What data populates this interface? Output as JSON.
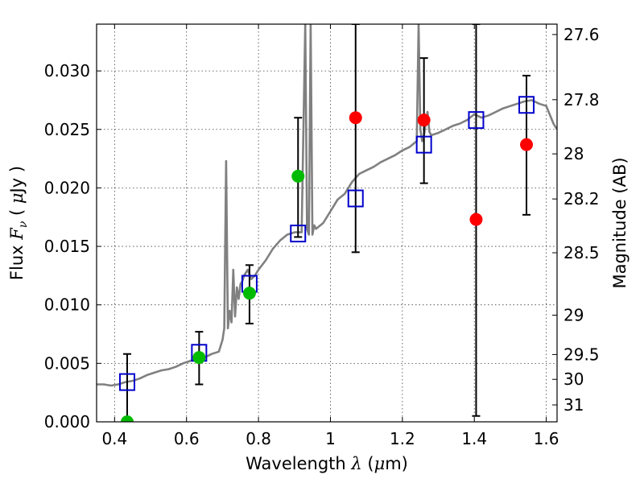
{
  "chart_data": {
    "type": "scatter",
    "xlabel": "Wavelength  λ (μm)",
    "ylabel": "Flux  Fν  ( μJy )",
    "ylabel_right": "Magnitude (AB)",
    "xlim": [
      0.35,
      1.63
    ],
    "ylim": [
      0.0,
      0.034
    ],
    "grid": true,
    "x_ticks": [
      {
        "value": 0.4,
        "label": "0.4"
      },
      {
        "value": 0.6,
        "label": "0.6"
      },
      {
        "value": 0.8,
        "label": "0.8"
      },
      {
        "value": 1.0,
        "label": "1"
      },
      {
        "value": 1.2,
        "label": "1.2"
      },
      {
        "value": 1.4,
        "label": "1.4"
      },
      {
        "value": 1.6,
        "label": "1.6"
      }
    ],
    "y_ticks": [
      {
        "value": 0.0,
        "label": "0.000"
      },
      {
        "value": 0.005,
        "label": "0.005"
      },
      {
        "value": 0.01,
        "label": "0.010"
      },
      {
        "value": 0.015,
        "label": "0.015"
      },
      {
        "value": 0.02,
        "label": "0.020"
      },
      {
        "value": 0.025,
        "label": "0.025"
      },
      {
        "value": 0.03,
        "label": "0.030"
      }
    ],
    "y_right_ticks": [
      {
        "value": 27.6,
        "label": "27.6"
      },
      {
        "value": 27.8,
        "label": "27.8"
      },
      {
        "value": 28.0,
        "label": "28"
      },
      {
        "value": 28.2,
        "label": "28.2"
      },
      {
        "value": 28.5,
        "label": "28.5"
      },
      {
        "value": 29.0,
        "label": "29"
      },
      {
        "value": 29.5,
        "label": "29.5"
      },
      {
        "value": 30.0,
        "label": "30"
      },
      {
        "value": 31.0,
        "label": "31"
      }
    ],
    "series": [
      {
        "kind": "line",
        "color": "#808080",
        "x": [
          0.35,
          0.37,
          0.39,
          0.41,
          0.43,
          0.45,
          0.47,
          0.49,
          0.51,
          0.53,
          0.55,
          0.57,
          0.59,
          0.61,
          0.63,
          0.65,
          0.67,
          0.69,
          0.7,
          0.705,
          0.71,
          0.715,
          0.72,
          0.725,
          0.73,
          0.735,
          0.74,
          0.745,
          0.75,
          0.755,
          0.76,
          0.77,
          0.78,
          0.79,
          0.8,
          0.82,
          0.84,
          0.86,
          0.88,
          0.9,
          0.92,
          0.93,
          0.935,
          0.94,
          0.945,
          0.95,
          0.955,
          0.96,
          0.98,
          1.0,
          1.02,
          1.04,
          1.06,
          1.08,
          1.1,
          1.12,
          1.14,
          1.16,
          1.18,
          1.2,
          1.22,
          1.24,
          1.245,
          1.25,
          1.255,
          1.26,
          1.27,
          1.275,
          1.28,
          1.3,
          1.32,
          1.34,
          1.36,
          1.38,
          1.4,
          1.42,
          1.44,
          1.46,
          1.48,
          1.5,
          1.52,
          1.54,
          1.56,
          1.58,
          1.6,
          1.62,
          1.63
        ],
        "y": [
          0.0032,
          0.0032,
          0.0031,
          0.0032,
          0.0034,
          0.0035,
          0.0037,
          0.004,
          0.0042,
          0.0044,
          0.0045,
          0.0047,
          0.005,
          0.0052,
          0.0054,
          0.0055,
          0.0058,
          0.006,
          0.007,
          0.008,
          0.0223,
          0.008,
          0.0095,
          0.0085,
          0.013,
          0.009,
          0.0115,
          0.0105,
          0.0118,
          0.012,
          0.0125,
          0.013,
          0.0122,
          0.0125,
          0.013,
          0.0138,
          0.0148,
          0.0155,
          0.016,
          0.0162,
          0.0162,
          0.034,
          0.0165,
          0.016,
          0.034,
          0.016,
          0.0168,
          0.0165,
          0.017,
          0.018,
          0.019,
          0.0195,
          0.0205,
          0.0212,
          0.0215,
          0.0218,
          0.0222,
          0.0225,
          0.0228,
          0.0232,
          0.0235,
          0.024,
          0.034,
          0.025,
          0.024,
          0.0245,
          0.0265,
          0.0248,
          0.0245,
          0.0247,
          0.025,
          0.0253,
          0.0255,
          0.0258,
          0.0263,
          0.026,
          0.0262,
          0.0265,
          0.0268,
          0.027,
          0.0272,
          0.0274,
          0.0275,
          0.0272,
          0.027,
          0.0255,
          0.025
        ]
      },
      {
        "kind": "errorbar",
        "color": "#000000",
        "x": [
          0.435,
          0.635,
          0.775,
          0.91,
          1.07,
          1.26,
          1.405,
          1.545
        ],
        "ylow": [
          0.0,
          0.0032,
          0.0084,
          0.0158,
          0.0145,
          0.0204,
          0.0005,
          0.0177
        ],
        "yhigh": [
          0.0058,
          0.0077,
          0.0134,
          0.026,
          0.034,
          0.0311,
          0.034,
          0.0296
        ]
      },
      {
        "kind": "open_square",
        "color": "#0000CC",
        "x": [
          0.435,
          0.635,
          0.775,
          0.91,
          1.07,
          1.26,
          1.405,
          1.545
        ],
        "y": [
          0.0034,
          0.0059,
          0.0118,
          0.0161,
          0.0191,
          0.0237,
          0.0258,
          0.0271
        ]
      },
      {
        "kind": "filled_circle",
        "color": "#00BB00",
        "x": [
          0.435,
          0.635,
          0.775,
          0.91
        ],
        "y": [
          0.0,
          0.0055,
          0.011,
          0.021
        ]
      },
      {
        "kind": "filled_circle",
        "color": "#FF0000",
        "x": [
          1.07,
          1.26,
          1.405,
          1.545
        ],
        "y": [
          0.026,
          0.0258,
          0.0173,
          0.0237
        ]
      }
    ]
  }
}
